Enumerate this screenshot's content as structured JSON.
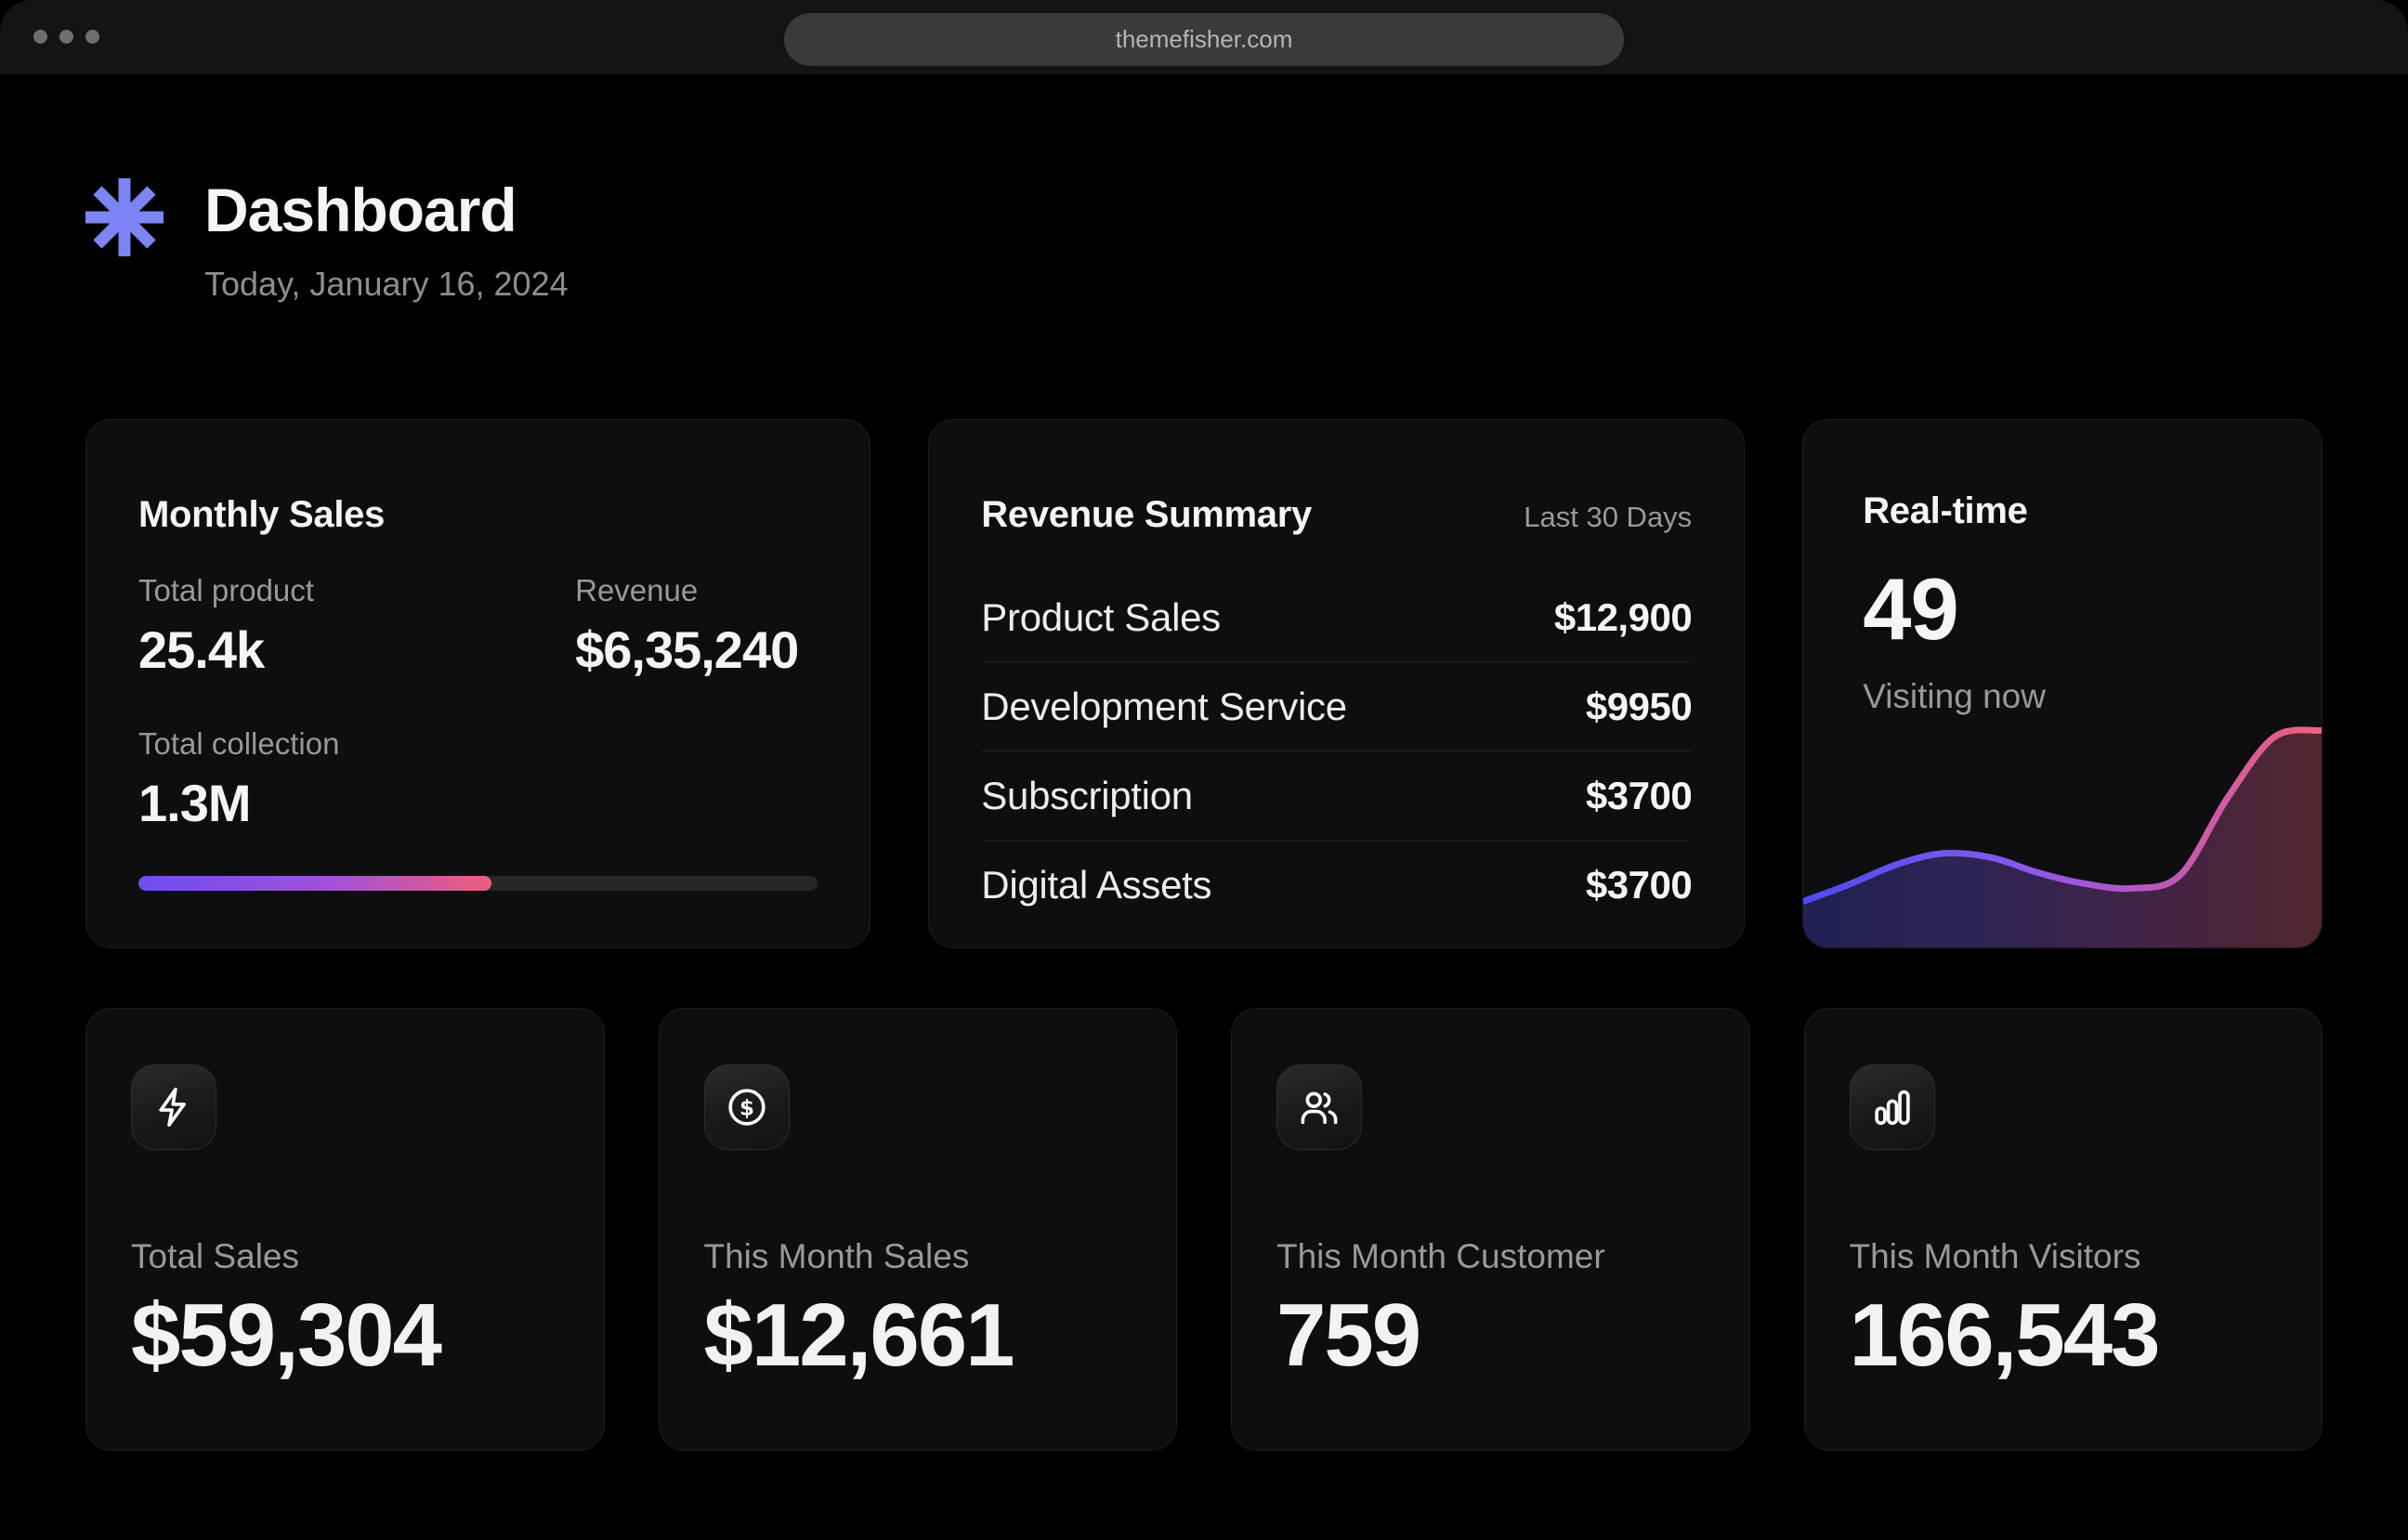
{
  "window": {
    "url": "themefisher.com"
  },
  "header": {
    "title": "Dashboard",
    "date": "Today, January 16, 2024",
    "logo_icon": "asterisk-icon",
    "logo_color": "#7c85f3"
  },
  "cards": {
    "monthly_sales": {
      "title": "Monthly Sales",
      "metrics": [
        {
          "label": "Total product",
          "value": "25.4k"
        },
        {
          "label": "Revenue",
          "value": "$6,35,240"
        },
        {
          "label": "Total collection",
          "value": "1.3M"
        }
      ],
      "progress_percent": 52,
      "progress_colors": [
        "#6d4df0",
        "#a151d8",
        "#ef5e78"
      ],
      "progress_track_color": "#27272a"
    },
    "revenue_summary": {
      "title": "Revenue Summary",
      "period": "Last 30 Days",
      "rows": [
        {
          "label": "Product Sales",
          "value": "$12,900"
        },
        {
          "label": "Development Service",
          "value": "$9950"
        },
        {
          "label": "Subscription",
          "value": "$3700"
        },
        {
          "label": "Digital Assets",
          "value": "$3700"
        }
      ]
    },
    "realtime": {
      "title": "Real-time",
      "count": "49",
      "caption": "Visiting now",
      "chart_data": {
        "type": "area",
        "title": "Real-time visitors sparkline",
        "xlabel": "",
        "ylabel": "",
        "x": [
          0,
          1,
          2,
          3,
          4,
          5,
          6,
          7,
          8,
          9,
          10,
          11
        ],
        "values": [
          18,
          26,
          35,
          40,
          38,
          31,
          26,
          24,
          30,
          65,
          93,
          96
        ],
        "ylim": [
          0,
          100
        ],
        "grid": false,
        "legend": false,
        "gradient": [
          "#4c4cf0",
          "#8059ef",
          "#b355c9",
          "#ef6078"
        ],
        "fill_opacity": 0.3
      }
    }
  },
  "stats": [
    {
      "icon": "zap-icon",
      "label": "Total Sales",
      "value": "$59,304"
    },
    {
      "icon": "dollar-circle-icon",
      "label": "This Month Sales",
      "value": "$12,661"
    },
    {
      "icon": "users-icon",
      "label": "This Month Customer",
      "value": "759"
    },
    {
      "icon": "bar-chart-icon",
      "label": "This Month Visitors",
      "value": "166,543"
    }
  ]
}
